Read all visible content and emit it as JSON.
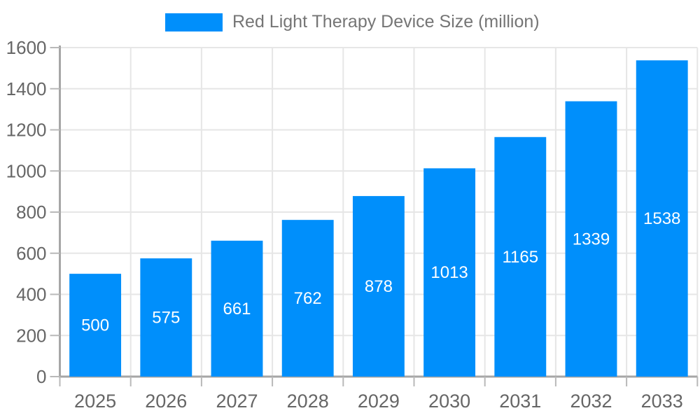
{
  "chart_data": {
    "type": "bar",
    "title": "Red Light Therapy Device Size (million)",
    "series": [
      {
        "name": "Red Light Therapy Device Size (million)",
        "values": [
          500,
          575,
          661,
          762,
          878,
          1013,
          1165,
          1339,
          1538
        ]
      }
    ],
    "categories": [
      "2025",
      "2026",
      "2027",
      "2028",
      "2029",
      "2030",
      "2031",
      "2032",
      "2033"
    ],
    "values": [
      500,
      575,
      661,
      762,
      878,
      1013,
      1165,
      1339,
      1538
    ],
    "bar_labels": [
      "500",
      "575",
      "661",
      "762",
      "878",
      "1013",
      "1165",
      "1339",
      "1538"
    ],
    "xlabel": "",
    "ylabel": "",
    "ylim": [
      0,
      1600
    ],
    "yticks": [
      0,
      200,
      400,
      600,
      800,
      1000,
      1200,
      1400,
      1600
    ],
    "grid": true,
    "legend_position": "top",
    "colors": {
      "bar": "#008ffb",
      "grid": "#e6e6e6",
      "axis": "#a6a6a6",
      "tick": "#b9b9b9",
      "axis_label": "#666666",
      "legend_text": "#757575",
      "bar_label": "#ffffff",
      "background": "#ffffff"
    }
  }
}
